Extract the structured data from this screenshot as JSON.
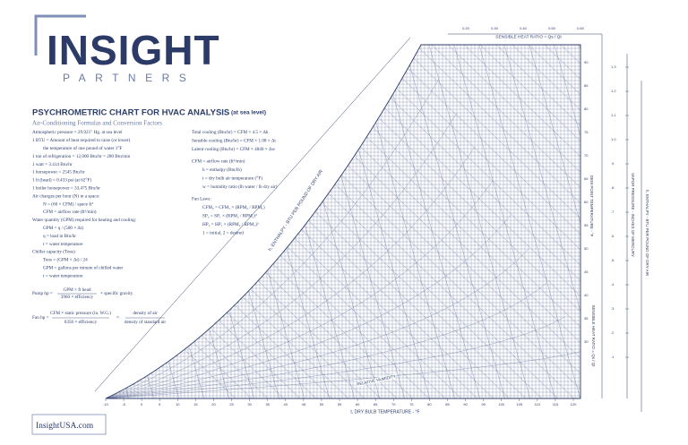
{
  "logo": {
    "name": "INSIGHT",
    "tagline": "PARTNERS"
  },
  "header": {
    "title": "PSYCHROMETRIC CHART FOR HVAC ANALYSIS",
    "title_note": "(at sea level)",
    "subtitle": "Air-Conditioning Formulas and Conversion Factors"
  },
  "formulas_left": [
    "Atmospheric pressure = 29.921\" Hg. at sea level",
    "1 BTU = Amount of heat required to raise (or lower)",
    "the temperature of one pound of water 1°F",
    "1 ton of refrigeration = 12,000 Btu/hr = 200 Btu/min",
    "1 watt = 3.414 Btu/hr",
    "1 horsepower = 2545 Btu/hr",
    "1 ft (head) = 0.433 psi (at 62°F)",
    "1 boiler horsepower = 33,475 Btu/hr",
    "Air changes per hour (N) in a space:",
    "N = (60 × CFM) / space ft³",
    "CFM = airflow rate (ft³/min)",
    "Water quantity (GPM) required for heating and cooling:",
    "GPM = q / (500 × Δt)",
    "q = load in Btu/hr",
    "t = water temperature",
    "Chiller capacity (Tons)",
    "Tons = (GPM × Δt) / 24",
    "GPM = gallons per minute of chilled water",
    "t = water temperature"
  ],
  "pump": {
    "label": "Pump hp =",
    "numerator": "GPM × ft head",
    "denominator": "3960 × efficiency",
    "factor": "× specific gravity"
  },
  "fan": {
    "label": "Fan hp =",
    "numerator": "CFM × static pressure (in. W.G.)",
    "denominator": "6356 × efficiency",
    "times": "×",
    "factor_top": "density of air",
    "factor_bottom": "density of standard air"
  },
  "formulas_middle": [
    "Total cooling (Btu/hr) = CFM × 4.5 × Δh",
    "Sensible cooling (Btu/hr) = CFM × 1.08 × Δt",
    "Latent cooling (Btu/hr) = CFM × 4840 × Δw",
    "CFM = airflow rate (ft³/min)",
    "h = enthalpy (Btu/lb)",
    "t = dry bulb air temperature (°F)",
    "w = humidity ratio (lb water / lb dry air)",
    "Fan Laws:",
    "CFM₂ = CFM₁ × (RPM₂ / RPM₁)",
    "SP₂ = SP₁ × (RPM₂ / RPM₁)²",
    "HP₂ = HP₁ × (RPM₂ / RPM₁)³",
    "1 = initial, 2 = desired"
  ],
  "chart": {
    "x_axis_title": "t, DRY BULB TEMPERATURE - °F",
    "dry_bulb_labels": [
      "-10",
      "-5",
      "0",
      "5",
      "10",
      "15",
      "20",
      "25",
      "30",
      "35",
      "40",
      "45",
      "50",
      "55",
      "60",
      "65",
      "70",
      "75",
      "80",
      "85",
      "90",
      "95",
      "100",
      "105",
      "110",
      "115",
      "120"
    ],
    "shr_title": "SENSIBLE HEAT RATIO = Qs / Qt",
    "shr_labels": [
      "0.20",
      "0.30",
      "0.40",
      "0.50",
      "0.60"
    ],
    "enthalpy_title": "h, ENTHALPY - BTU PER POUND OF DRY AIR",
    "dew_point_title": "DEW POINT TEMPERATURE - °F",
    "dew_point_labels": [
      "90",
      "85",
      "80",
      "75",
      "70",
      "65",
      "60",
      "55",
      "50",
      "45",
      "40",
      "35",
      "30"
    ],
    "vapor_title": "VAPOR PRESSURE - INCHES OF MERCURY",
    "vapor_labels": [
      "1.3",
      "1.2",
      "1.1",
      "1.0",
      ".9",
      ".8",
      ".7",
      ".6",
      ".5",
      ".4",
      ".3",
      ".2",
      ".1"
    ],
    "enthalpy_right_title": "h, ENTHALPY - BTU PER POUND OF DRY AIR",
    "shr_right_title": "SENSIBLE HEAT RATIO = Qs / Qt",
    "rh_title": "RELATIVE HUMIDITY"
  },
  "footer": {
    "url": "InsightUSA.com"
  }
}
